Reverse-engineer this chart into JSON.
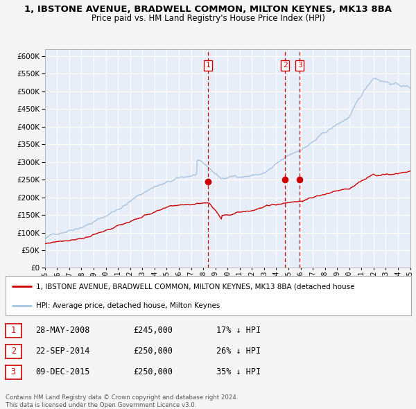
{
  "title": "1, IBSTONE AVENUE, BRADWELL COMMON, MILTON KEYNES, MK13 8BA",
  "subtitle": "Price paid vs. HM Land Registry's House Price Index (HPI)",
  "fig_bg_color": "#f5f5f5",
  "plot_bg_color": "#e8eef8",
  "grid_color": "#ffffff",
  "ylim": [
    0,
    620000
  ],
  "yticks": [
    0,
    50000,
    100000,
    150000,
    200000,
    250000,
    300000,
    350000,
    400000,
    450000,
    500000,
    550000,
    600000
  ],
  "hpi_color": "#a8c4e0",
  "price_color": "#cc0000",
  "marker_color": "#cc0000",
  "sale_points": [
    {
      "year": 2008.41,
      "price": 245000,
      "label": "1"
    },
    {
      "year": 2014.72,
      "price": 250000,
      "label": "2"
    },
    {
      "year": 2015.93,
      "price": 250000,
      "label": "3"
    }
  ],
  "vline_color": "#cc0000",
  "legend_items": [
    "1, IBSTONE AVENUE, BRADWELL COMMON, MILTON KEYNES, MK13 8BA (detached house",
    "HPI: Average price, detached house, Milton Keynes"
  ],
  "table_rows": [
    {
      "num": "1",
      "date": "28-MAY-2008",
      "price": "£245,000",
      "hpi": "17% ↓ HPI"
    },
    {
      "num": "2",
      "date": "22-SEP-2014",
      "price": "£250,000",
      "hpi": "26% ↓ HPI"
    },
    {
      "num": "3",
      "date": "09-DEC-2015",
      "price": "£250,000",
      "hpi": "35% ↓ HPI"
    }
  ],
  "footer": "Contains HM Land Registry data © Crown copyright and database right 2024.\nThis data is licensed under the Open Government Licence v3.0."
}
